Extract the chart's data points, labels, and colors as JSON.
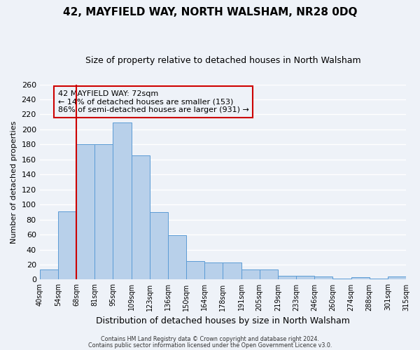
{
  "title": "42, MAYFIELD WAY, NORTH WALSHAM, NR28 0DQ",
  "subtitle": "Size of property relative to detached houses in North Walsham",
  "xlabel": "Distribution of detached houses by size in North Walsham",
  "ylabel": "Number of detached properties",
  "bin_labels": [
    "40sqm",
    "54sqm",
    "68sqm",
    "81sqm",
    "95sqm",
    "109sqm",
    "123sqm",
    "136sqm",
    "150sqm",
    "164sqm",
    "178sqm",
    "191sqm",
    "205sqm",
    "219sqm",
    "233sqm",
    "246sqm",
    "260sqm",
    "274sqm",
    "288sqm",
    "301sqm",
    "315sqm"
  ],
  "bar_values": [
    13,
    91,
    180,
    180,
    209,
    165,
    90,
    59,
    25,
    23,
    23,
    13,
    13,
    5,
    5,
    4,
    1,
    3,
    1,
    4
  ],
  "bar_color": "#b8d0ea",
  "bar_edge_color": "#5b9bd5",
  "ylim": [
    0,
    260
  ],
  "yticks": [
    0,
    20,
    40,
    60,
    80,
    100,
    120,
    140,
    160,
    180,
    200,
    220,
    240,
    260
  ],
  "vline_x": 2.0,
  "vline_color": "#cc0000",
  "annotation_text": "42 MAYFIELD WAY: 72sqm\n← 14% of detached houses are smaller (153)\n86% of semi-detached houses are larger (931) →",
  "annotation_box_color": "#cc0000",
  "footer1": "Contains HM Land Registry data © Crown copyright and database right 2024.",
  "footer2": "Contains public sector information licensed under the Open Government Licence v3.0.",
  "background_color": "#eef2f8",
  "grid_color": "#ffffff",
  "title_fontsize": 11,
  "subtitle_fontsize": 9
}
